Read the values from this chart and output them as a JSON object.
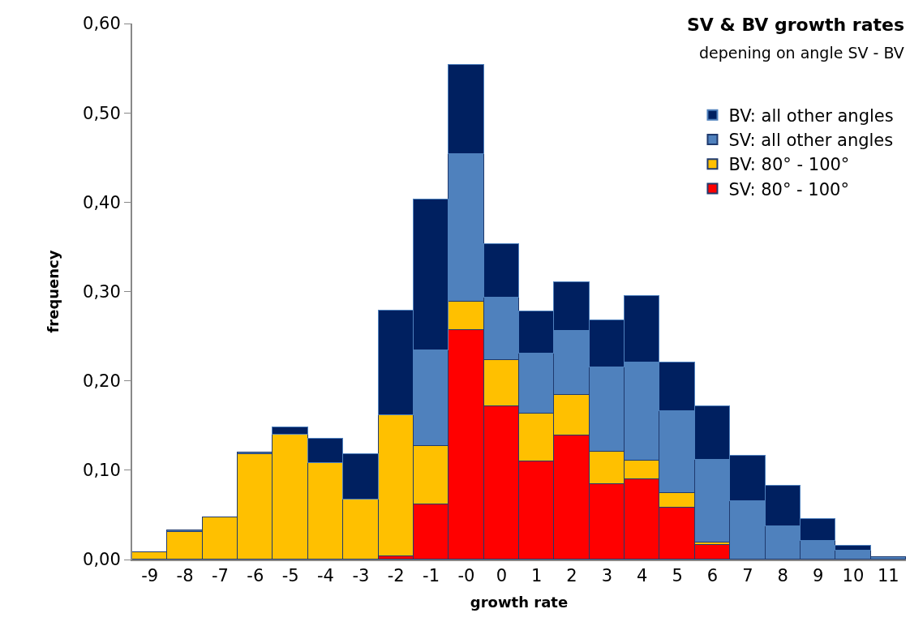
{
  "chart_data": {
    "type": "bar",
    "title": "SV & BV growth rates",
    "subtitle": "depening on angle SV - BV",
    "xlabel": "growth rate",
    "ylabel": "frequency",
    "categories": [
      "-9",
      "-8",
      "-7",
      "-6",
      "-5",
      "-4",
      "-3",
      "-2",
      "-1",
      "-0",
      "0",
      "1",
      "2",
      "3",
      "4",
      "5",
      "6",
      "7",
      "8",
      "9",
      "10",
      "11"
    ],
    "stacked": true,
    "legend": "top right",
    "ylim": [
      0,
      0.6
    ],
    "yticks": [
      {
        "value": 0,
        "label": "0,00"
      },
      {
        "value": 0.1,
        "label": "0,10"
      },
      {
        "value": 0.2,
        "label": "0,20"
      },
      {
        "value": 0.3,
        "label": "0,30"
      },
      {
        "value": 0.4,
        "label": "0,40"
      },
      {
        "value": 0.5,
        "label": "0,50"
      },
      {
        "value": 0.6,
        "label": "0,60"
      }
    ],
    "series": [
      {
        "name": "SV: 80° - 100°",
        "color": "#ff0000",
        "values": [
          0,
          0,
          0,
          0,
          0,
          0,
          0,
          0.004,
          0.062,
          0.257,
          0.172,
          0.11,
          0.139,
          0.084,
          0.09,
          0.058,
          0.016,
          0,
          0,
          0,
          0,
          0
        ]
      },
      {
        "name": "BV: 80° - 100°",
        "color": "#ffc000",
        "values": [
          0.008,
          0.031,
          0.047,
          0.118,
          0.14,
          0.108,
          0.067,
          0.158,
          0.065,
          0.032,
          0.051,
          0.053,
          0.045,
          0.037,
          0.021,
          0.016,
          0.003,
          0,
          0,
          0,
          0,
          0
        ]
      },
      {
        "name": "SV: all other angles",
        "color": "#4f81bd",
        "values": [
          0,
          0.002,
          0,
          0.002,
          0,
          0,
          0,
          0,
          0.107,
          0.165,
          0.07,
          0.068,
          0.072,
          0.094,
          0.11,
          0.092,
          0.093,
          0.065,
          0.037,
          0.021,
          0.01,
          0.003
        ]
      },
      {
        "name": "BV: all other angles",
        "color": "#002060",
        "values": [
          0,
          0,
          0,
          0,
          0.008,
          0.027,
          0.051,
          0.117,
          0.169,
          0.1,
          0.06,
          0.047,
          0.054,
          0.053,
          0.074,
          0.055,
          0.06,
          0.051,
          0.046,
          0.024,
          0.005,
          0
        ]
      }
    ]
  }
}
